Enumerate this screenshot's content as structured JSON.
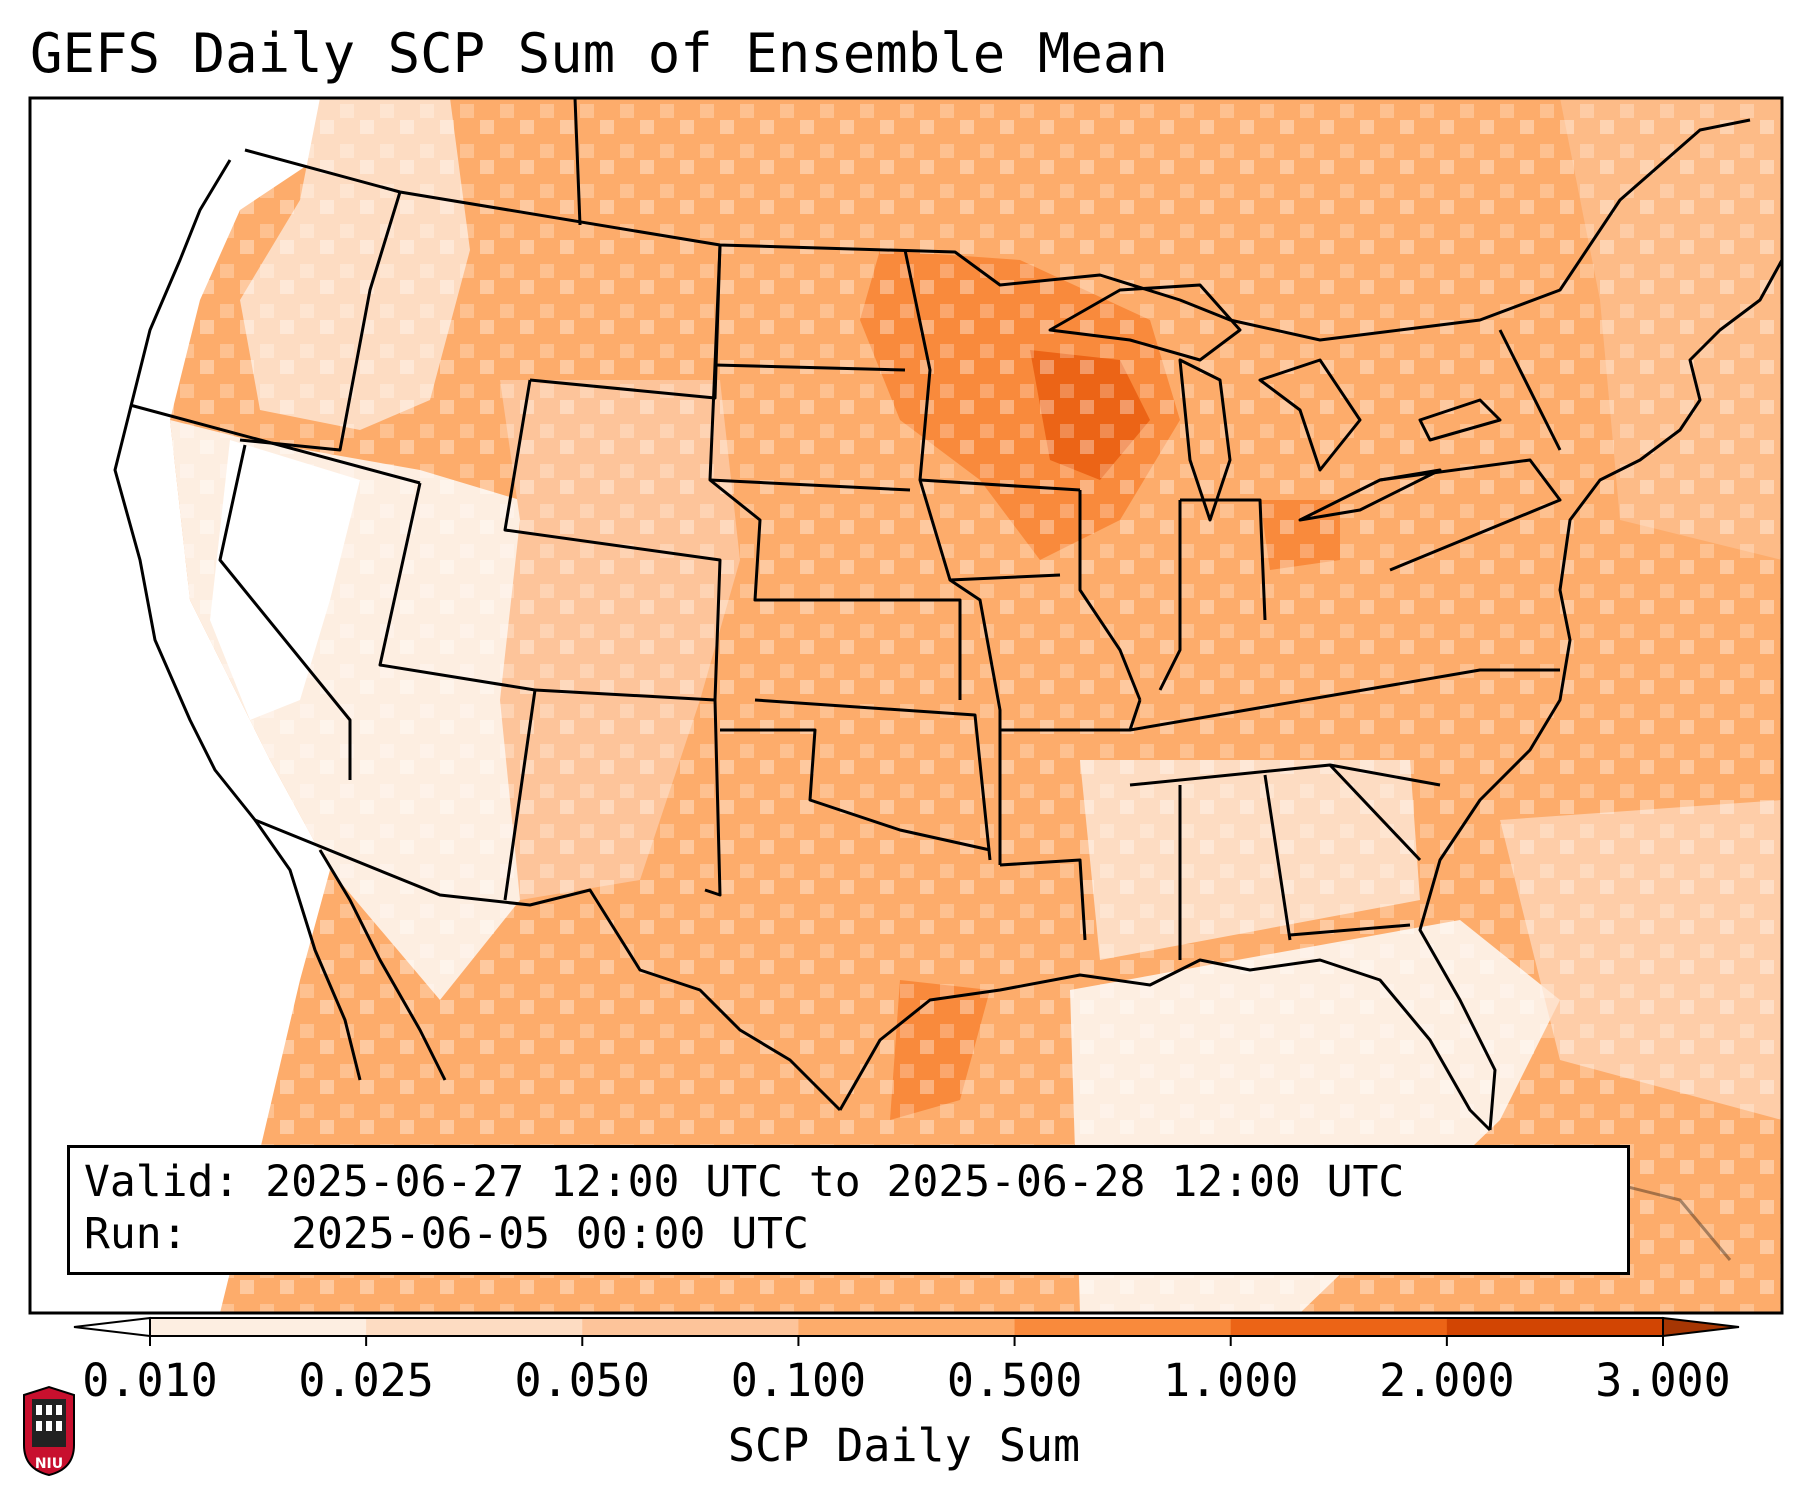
{
  "title": "GEFS Daily SCP Sum of Ensemble Mean",
  "info": {
    "valid_label": "Valid:",
    "valid_value": "2025-06-27 12:00 UTC to 2025-06-28 12:00 UTC",
    "run_label": "Run:",
    "run_value": "2025-06-05 00:00 UTC"
  },
  "colorbar": {
    "title": "SCP Daily Sum",
    "ticks": [
      "0.010",
      "0.025",
      "0.050",
      "0.100",
      "0.500",
      "1.000",
      "2.000",
      "3.000"
    ],
    "colors": [
      "#fdeee1",
      "#fddcc2",
      "#fdc49a",
      "#fdac6b",
      "#f98a3c",
      "#ec6416",
      "#d24503"
    ],
    "under_color": "#ffffff",
    "over_color": "#a63603"
  },
  "colors": {
    "ocean_fill": "#fdac6b",
    "state_line": "#000000"
  },
  "logo": {
    "name": "NIU shield logo",
    "text": "NIU"
  }
}
